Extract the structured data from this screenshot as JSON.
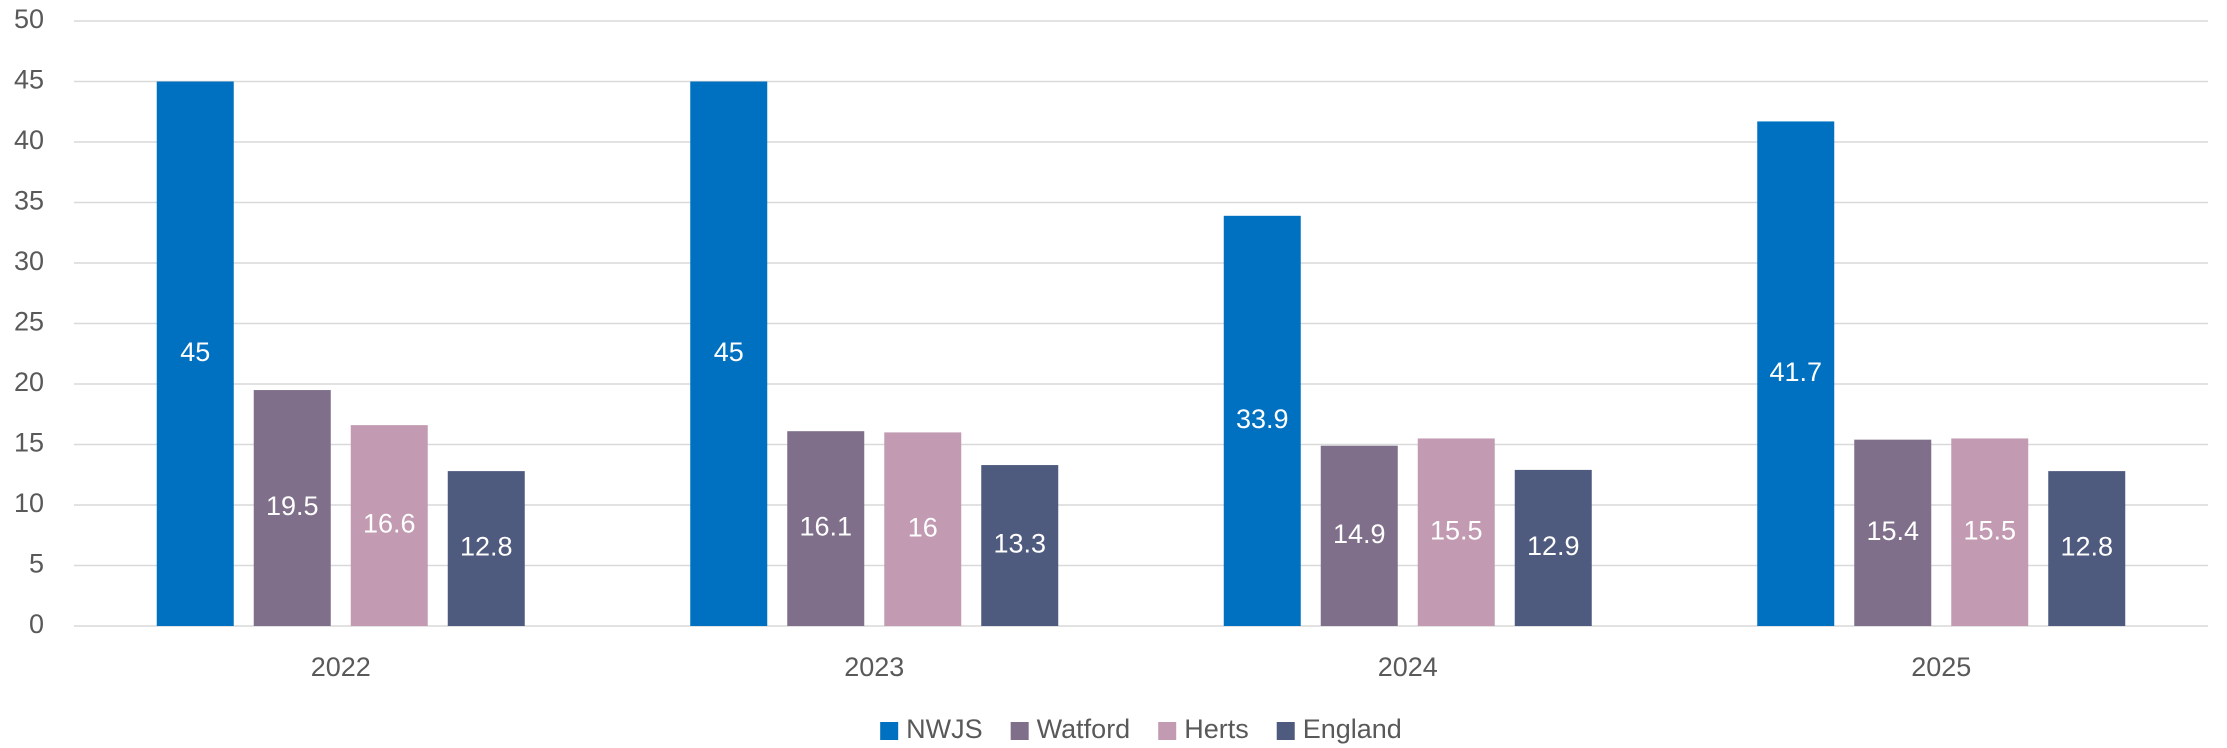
{
  "chart_data": {
    "type": "bar",
    "categories": [
      "2022",
      "2023",
      "2024",
      "2025"
    ],
    "series": [
      {
        "name": "NWJS",
        "color": "#0070c0",
        "values": [
          45,
          45,
          33.9,
          41.7
        ]
      },
      {
        "name": "Watford",
        "color": "#7f6f8a",
        "values": [
          19.5,
          16.1,
          14.9,
          15.4
        ]
      },
      {
        "name": "Herts",
        "color": "#c29bb2",
        "values": [
          16.6,
          16,
          15.5,
          15.5
        ]
      },
      {
        "name": "England",
        "color": "#4e5a7e",
        "values": [
          12.8,
          13.3,
          12.9,
          12.8
        ]
      }
    ],
    "ylim": [
      0,
      50
    ],
    "yticks": [
      0,
      5,
      10,
      15,
      20,
      25,
      30,
      35,
      40,
      45,
      50
    ],
    "grid": true,
    "legend": "bottom"
  }
}
